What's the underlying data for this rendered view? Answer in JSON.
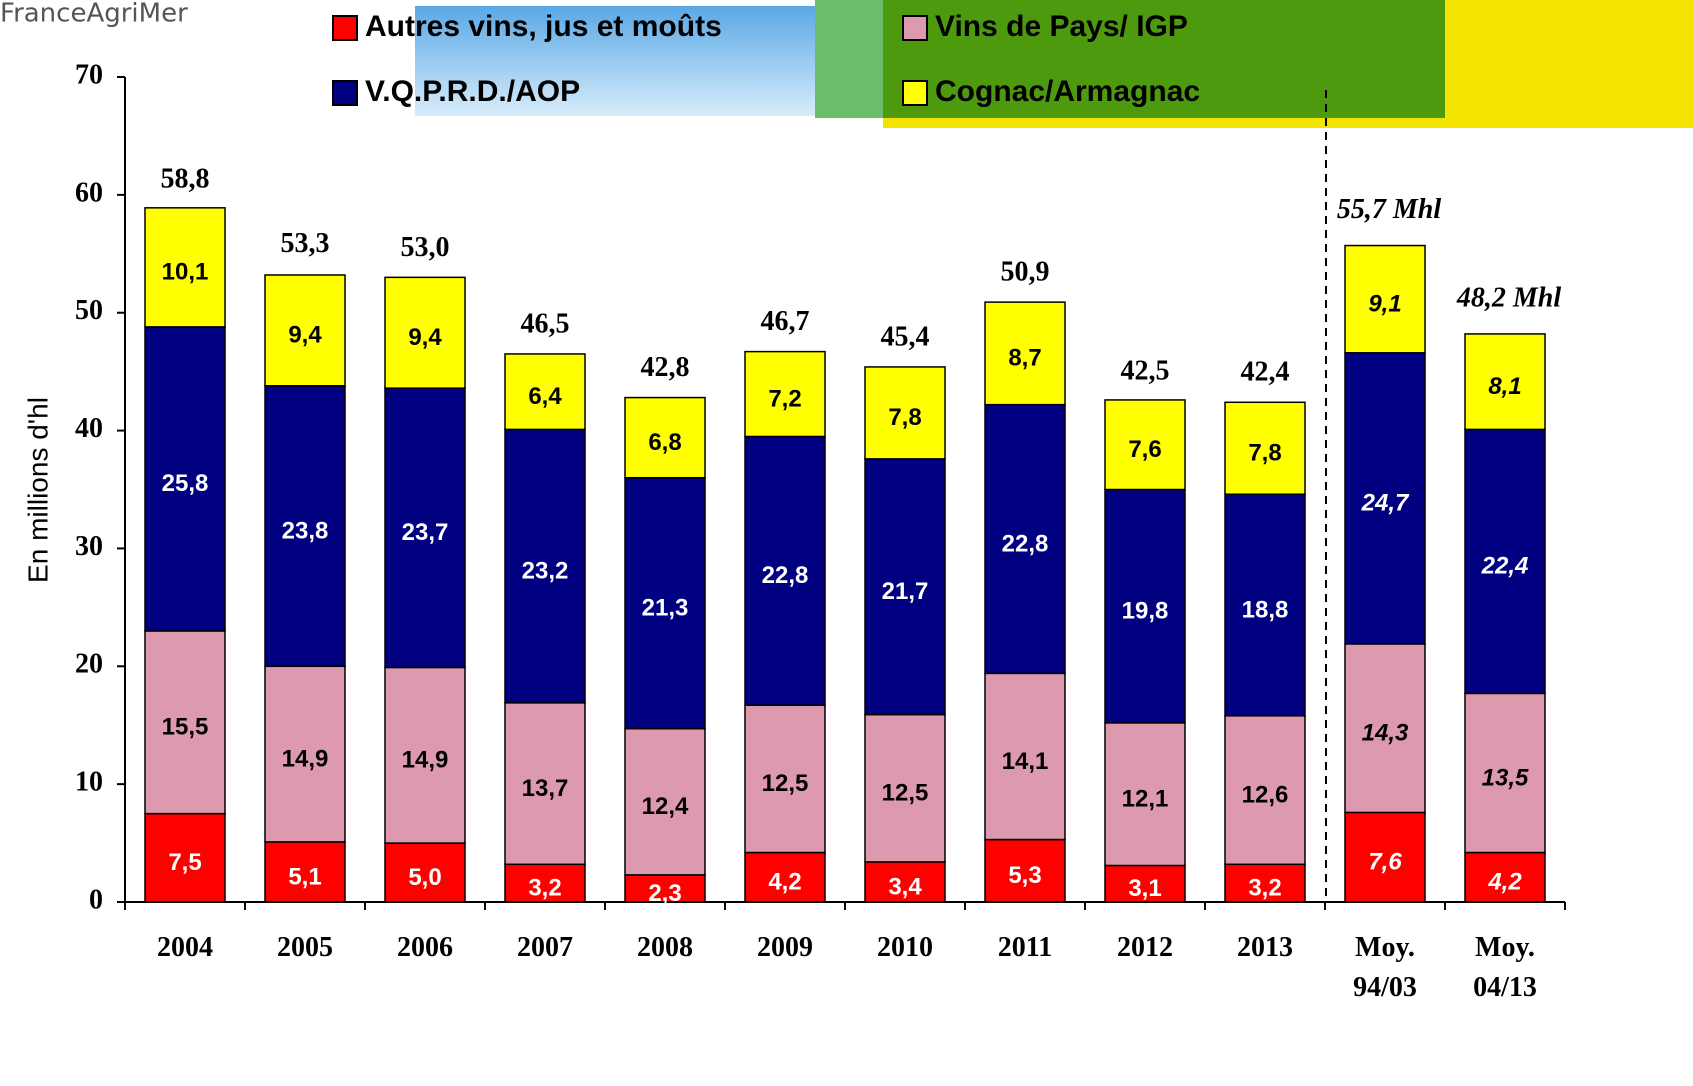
{
  "logo": "FranceAgriMer",
  "chart_data": {
    "type": "stacked_bar",
    "y_label": "En millions d'hl",
    "categories": [
      "2004",
      "2005",
      "2006",
      "2007",
      "2008",
      "2009",
      "2010",
      "2011",
      "2012",
      "2013",
      "Moy.\n94/03",
      "Moy.\n04/13"
    ],
    "series": [
      {
        "name": "Autres vins, jus et moûts",
        "color": "#ff0000",
        "label_color": "#ffffff",
        "values": [
          7.5,
          5.1,
          5.0,
          3.2,
          2.3,
          4.2,
          3.4,
          5.3,
          3.1,
          3.2,
          7.6,
          4.2
        ],
        "value_labels": [
          "7,5",
          "5,1",
          "5,0",
          "3,2",
          "2,3",
          "4,2",
          "3,4",
          "5,3",
          "3,1",
          "3,2",
          "7,6",
          "4,2"
        ]
      },
      {
        "name": "Vins de Pays/ IGP",
        "color": "#dd9aae",
        "label_color": "#000000",
        "values": [
          15.5,
          14.9,
          14.9,
          13.7,
          12.4,
          12.5,
          12.5,
          14.1,
          12.1,
          12.6,
          14.3,
          13.5
        ],
        "value_labels": [
          "15,5",
          "14,9",
          "14,9",
          "13,7",
          "12,4",
          "12,5",
          "12,5",
          "14,1",
          "12,1",
          "12,6",
          "14,3",
          "13,5"
        ]
      },
      {
        "name": "V.Q.P.R.D./AOP",
        "color": "#000080",
        "label_color": "#ffffff",
        "values": [
          25.8,
          23.8,
          23.7,
          23.2,
          21.3,
          22.8,
          21.7,
          22.8,
          19.8,
          18.8,
          24.7,
          22.4
        ],
        "value_labels": [
          "25,8",
          "23,8",
          "23,7",
          "23,2",
          "21,3",
          "22,8",
          "21,7",
          "22,8",
          "19,8",
          "18,8",
          "24,7",
          "22,4"
        ]
      },
      {
        "name": "Cognac/Armagnac",
        "color": "#ffff00",
        "label_color": "#000000",
        "values": [
          10.1,
          9.4,
          9.4,
          6.4,
          6.8,
          7.2,
          7.8,
          8.7,
          7.6,
          7.8,
          9.1,
          8.1
        ],
        "value_labels": [
          "10,1",
          "9,4",
          "9,4",
          "6,4",
          "6,8",
          "7,2",
          "7,8",
          "8,7",
          "7,6",
          "7,8",
          "9,1",
          "8,1"
        ]
      }
    ],
    "totals": {
      "values": [
        58.8,
        53.3,
        53.0,
        46.5,
        42.8,
        46.7,
        45.4,
        50.9,
        42.5,
        42.4,
        55.7,
        48.2
      ],
      "value_labels": [
        "58,8",
        "53,3",
        "53,0",
        "46,5",
        "42,8",
        "46,7",
        "45,4",
        "50,9",
        "42,5",
        "42,4",
        "55,7 Mhl",
        "48,2 Mhl"
      ]
    },
    "ylim": [
      0,
      70
    ],
    "yticks": [
      0,
      10,
      20,
      30,
      40,
      50,
      60,
      70
    ]
  }
}
